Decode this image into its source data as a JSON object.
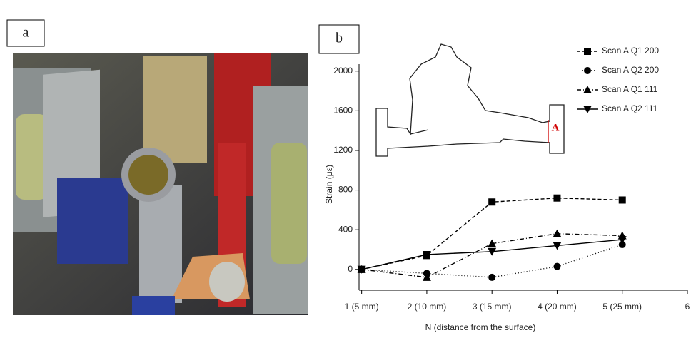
{
  "photo": {
    "label": "a"
  },
  "chart_data": {
    "type": "line",
    "panel_label": "b",
    "y_label": "Strain (με)",
    "x_label": "N (distance from the surface)",
    "inset_label": "A",
    "x": [
      1,
      2,
      3,
      4,
      5
    ],
    "xlim": [
      0.96,
      6
    ],
    "xticks": [
      {
        "value": 1,
        "label": "1 (5 mm)"
      },
      {
        "value": 2,
        "label": "2 (10 mm)"
      },
      {
        "value": 3,
        "label": "3 (15 mm)"
      },
      {
        "value": 4,
        "label": "4 (20 mm)"
      },
      {
        "value": 5,
        "label": "5 (25 mm)"
      },
      6
    ],
    "ylim": [
      -210,
      2070
    ],
    "yticks": [
      0,
      400,
      800,
      1200,
      1600,
      2000
    ],
    "series": [
      {
        "name": "Scan A  Q1 200",
        "color": "#000000",
        "marker": "square",
        "linestyle": "dashed",
        "values": [
          0,
          140,
          680,
          720,
          700
        ]
      },
      {
        "name": "Scan A  Q2 200",
        "color": "#000000",
        "marker": "circle",
        "linestyle": "dotted",
        "values": [
          0,
          -40,
          -80,
          30,
          250
        ]
      },
      {
        "name": "Scan A  Q1 111",
        "color": "#000000",
        "marker": "triangle-up",
        "linestyle": "dashdot",
        "values": [
          0,
          -80,
          260,
          360,
          340
        ]
      },
      {
        "name": "Scan A  Q2 111",
        "color": "#000000",
        "marker": "triangle-down",
        "linestyle": "solid",
        "values": [
          0,
          150,
          180,
          240,
          300
        ]
      }
    ]
  }
}
